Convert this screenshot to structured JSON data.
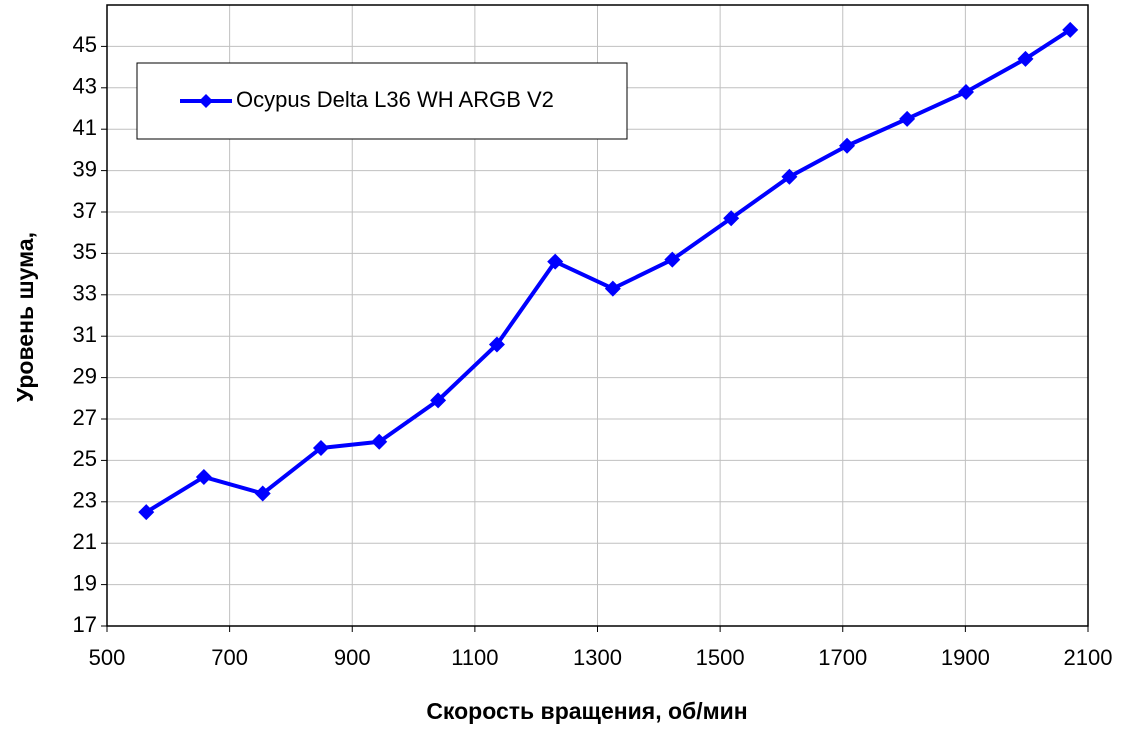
{
  "chart_data": {
    "type": "line",
    "x_label": "Скорость вращения, об/мин",
    "y_label": "Уровень шума,",
    "x": [
      564,
      658,
      754,
      849,
      944,
      1040,
      1136,
      1231,
      1325,
      1422,
      1518,
      1613,
      1707,
      1805,
      1901,
      1998,
      2071
    ],
    "series": [
      {
        "name": "Ocypus Delta L36 WH ARGB V2",
        "color": "#0000ff",
        "values": [
          22.5,
          24.2,
          23.4,
          25.6,
          25.9,
          27.9,
          30.6,
          34.6,
          33.3,
          34.7,
          36.7,
          38.7,
          40.2,
          41.5,
          42.8,
          44.4,
          45.8
        ]
      }
    ],
    "xlim": [
      500,
      2100
    ],
    "xticks": [
      500,
      700,
      900,
      1100,
      1300,
      1500,
      1700,
      1900,
      2100
    ],
    "ylim": [
      17,
      47
    ],
    "yticks": [
      17,
      19,
      21,
      23,
      25,
      27,
      29,
      31,
      33,
      35,
      37,
      39,
      41,
      43,
      45
    ],
    "grid": true,
    "legend": "top-left"
  }
}
